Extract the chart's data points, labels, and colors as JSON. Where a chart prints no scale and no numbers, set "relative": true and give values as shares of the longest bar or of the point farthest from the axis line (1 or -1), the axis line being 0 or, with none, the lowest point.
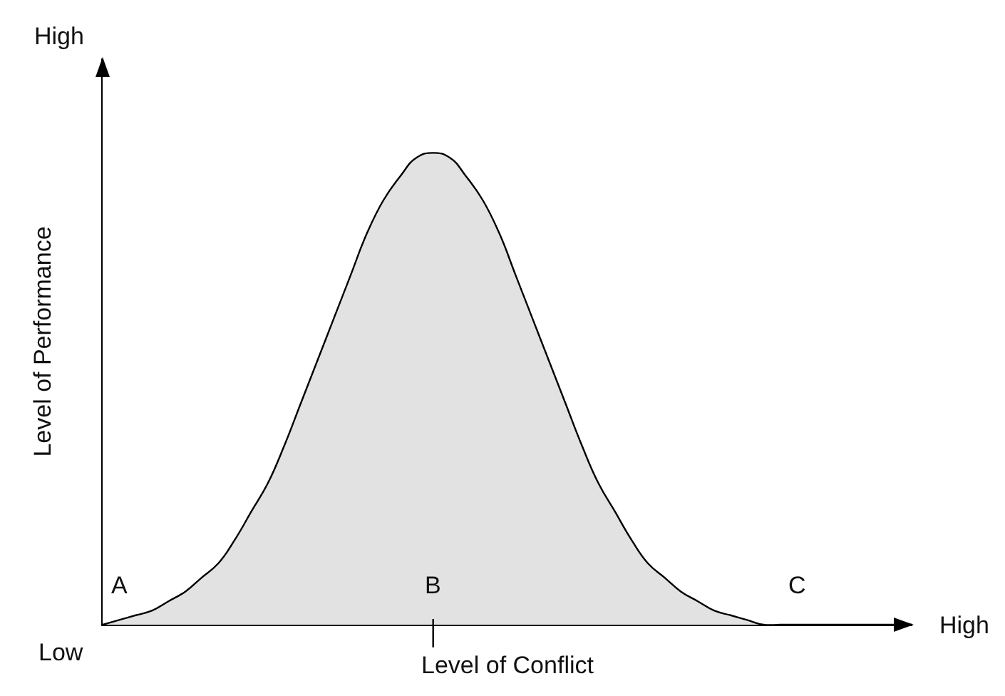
{
  "chart_data": {
    "type": "area",
    "relative": true,
    "xlabel": "Level of Conflict",
    "ylabel": "Level of Performance",
    "categories": [
      null,
      null,
      null,
      null,
      null,
      null,
      null,
      null,
      null,
      null,
      null,
      null,
      null,
      null,
      null,
      null,
      null,
      null,
      null,
      null,
      null,
      null,
      null,
      null,
      null,
      null,
      null,
      null,
      null,
      null,
      null,
      null,
      null,
      null,
      null,
      null,
      null,
      null,
      null,
      null,
      null,
      null,
      null,
      null,
      null,
      null,
      null,
      null,
      null,
      null
    ],
    "series": [
      {
        "color": "#e2e2e2",
        "values": [
          0,
          0.01,
          0.02,
          0.03,
          0.05,
          0.07,
          0.1,
          0.13,
          0.18,
          0.24,
          0.3,
          0.38,
          0.47,
          0.56,
          0.65,
          0.74,
          0.83,
          0.9,
          0.95,
          0.99,
          1,
          0.99,
          0.95,
          0.9,
          0.83,
          0.74,
          0.65,
          0.56,
          0.47,
          0.38,
          0.3,
          0.24,
          0.18,
          0.13,
          0.1,
          0.07,
          0.05,
          0.03,
          0.02,
          0.01,
          0,
          0,
          0,
          0,
          0,
          0,
          0,
          0,
          0,
          0
        ]
      }
    ],
    "annotations": [
      "A",
      "B",
      "C",
      "Low",
      "High",
      "High"
    ],
    "line_style": "solid"
  }
}
